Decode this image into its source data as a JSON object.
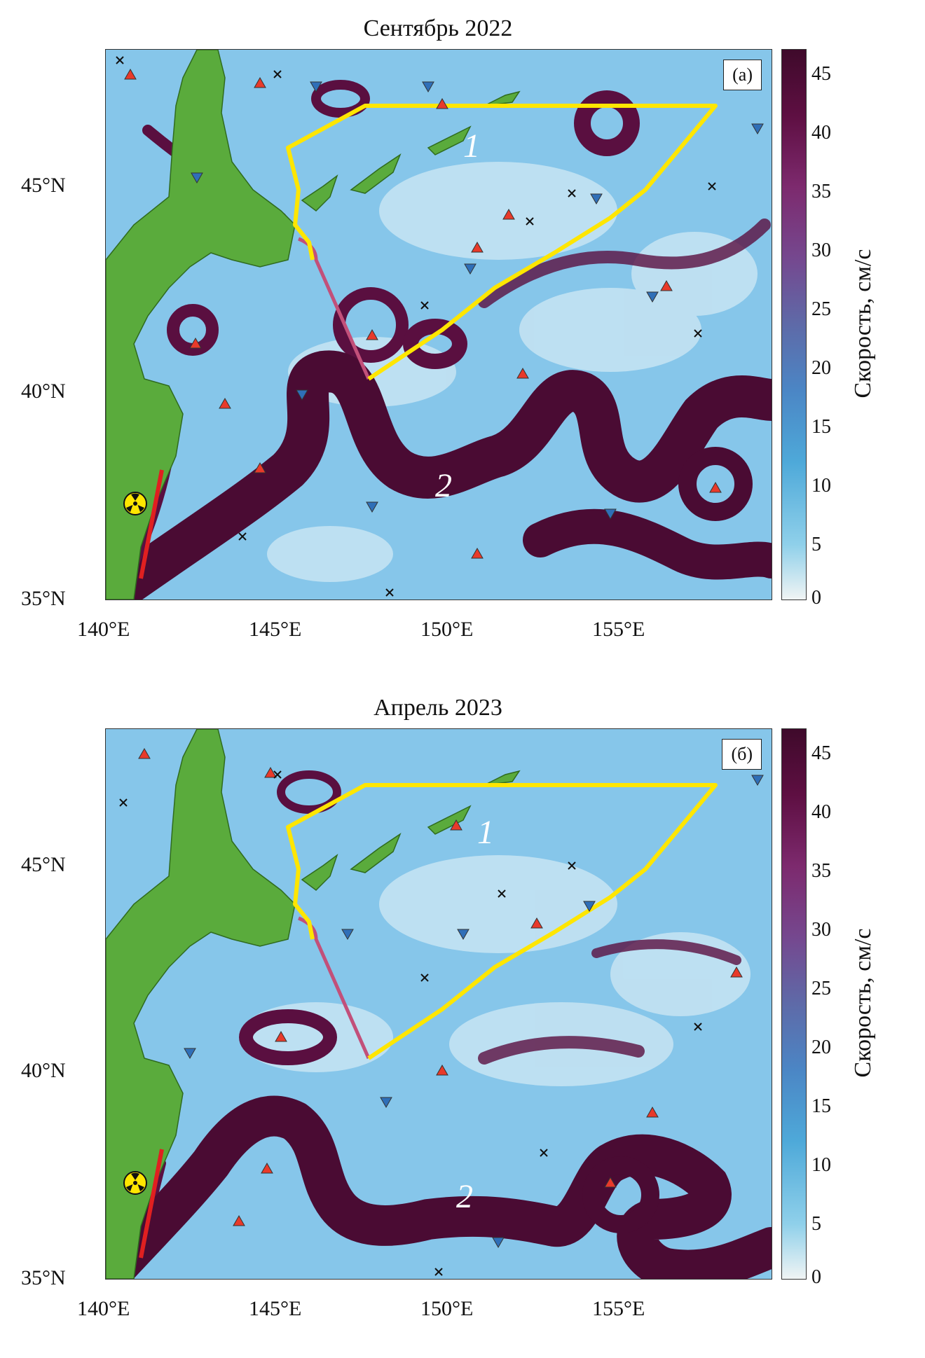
{
  "panels": [
    {
      "title": "Сентябрь 2022",
      "letter": "(а)",
      "label_1": "1",
      "label_2": "2",
      "lat_labels": [
        "45°N",
        "40°N",
        "35°N"
      ],
      "lon_labels": [
        "140°E",
        "145°E",
        "150°E",
        "155°E"
      ]
    },
    {
      "title": "Апрель 2023",
      "letter": "(б)",
      "label_1": "1",
      "label_2": "2",
      "lat_labels": [
        "45°N",
        "40°N",
        "35°N"
      ],
      "lon_labels": [
        "140°E",
        "145°E",
        "150°E",
        "155°E"
      ]
    }
  ],
  "colorbar": {
    "title": "Скорость, см/с",
    "ticks": [
      "45",
      "40",
      "35",
      "30",
      "25",
      "20",
      "15",
      "10",
      "5",
      "0"
    ],
    "range": [
      0,
      47
    ]
  },
  "colors": {
    "land": "#5aab3c",
    "ocean_low": "#7fbfe8",
    "ocean_high": "#4a0b33",
    "polygon": "#ffe600",
    "section": "#c2507a",
    "coast_line": "#e02020",
    "triangle_up": "#e83a2a",
    "triangle_down": "#2f6fb8"
  },
  "icons": [
    "radiation-icon",
    "triangle-up-marker",
    "triangle-down-marker",
    "cross-marker"
  ]
}
